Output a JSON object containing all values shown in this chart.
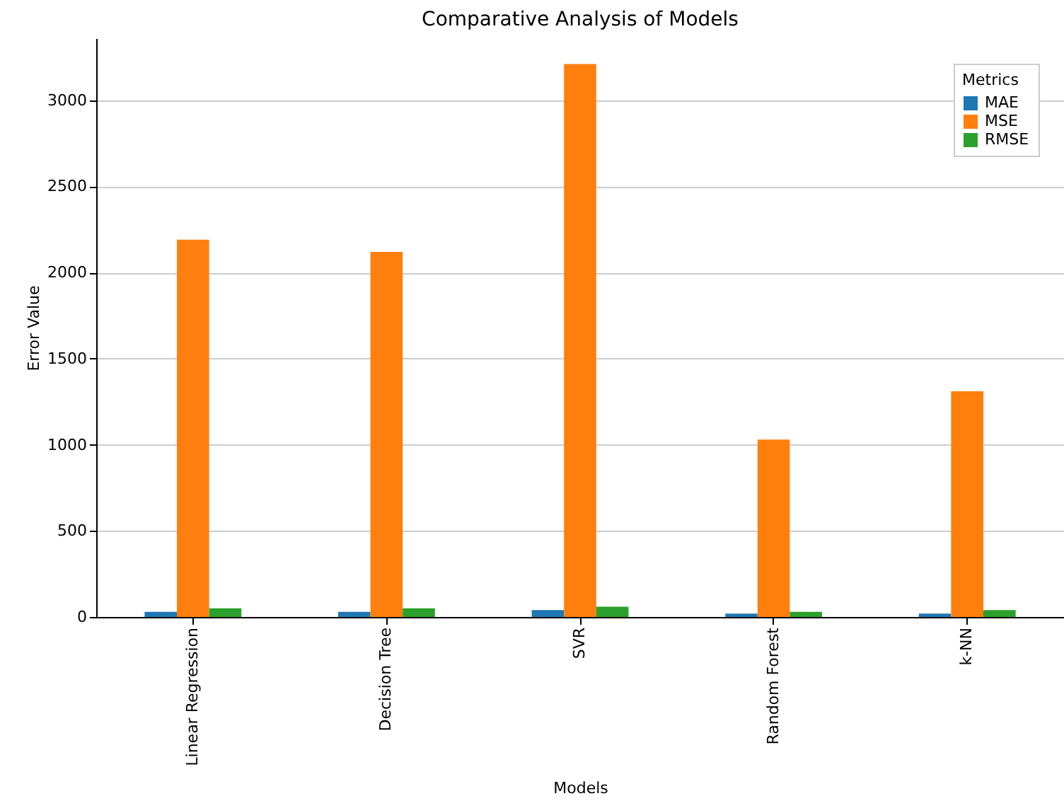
{
  "chart_data": {
    "type": "bar",
    "title": "Comparative Analysis of Models",
    "xlabel": "Models",
    "ylabel": "Error Value",
    "legend_title": "Metrics",
    "categories": [
      "Linear Regression",
      "Decision Tree",
      "SVR",
      "Random Forest",
      "k-NN"
    ],
    "series": [
      {
        "name": "MAE",
        "color": "#1f77b4",
        "values": [
          30,
          30,
          40,
          20,
          20
        ]
      },
      {
        "name": "MSE",
        "color": "#ff7f0e",
        "values": [
          2190,
          2120,
          3210,
          1030,
          1310
        ]
      },
      {
        "name": "RMSE",
        "color": "#2ca02c",
        "values": [
          50,
          50,
          60,
          30,
          40
        ]
      }
    ],
    "ylim": [
      0,
      3360
    ],
    "yticks": [
      0,
      500,
      1000,
      1500,
      2000,
      2500,
      3000
    ],
    "grid": "y",
    "legend": "top right"
  }
}
